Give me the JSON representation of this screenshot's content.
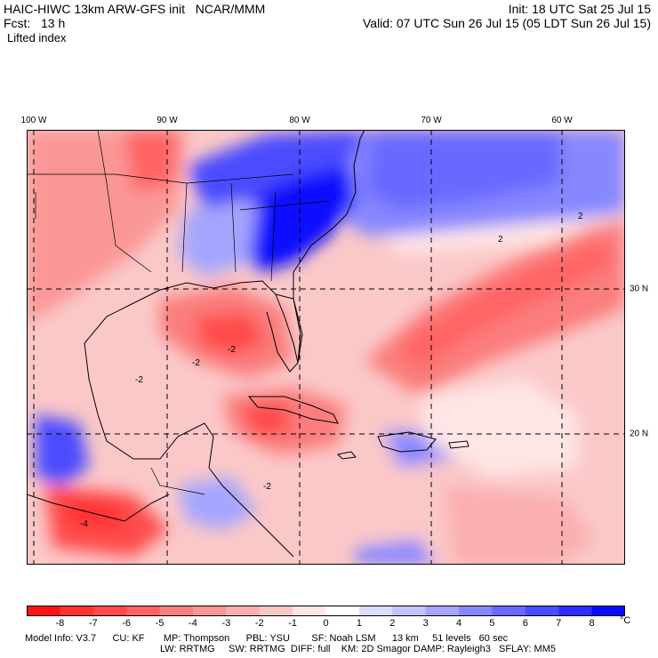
{
  "header": {
    "model_title": "HAIC-HIWC 13km ARW-GFS init   NCAR/MMM",
    "forecast_label": "Fcst:   13 h",
    "field_name": "Lifted index",
    "init_time": "Init: 18 UTC Sat 25 Jul 15",
    "valid_time": "Valid: 07 UTC Sun 26 Jul 15 (05 LDT Sun 26 Jul 15)"
  },
  "map": {
    "region": "Gulf of Mexico, Caribbean and Western Atlantic",
    "longitude_labels": [
      "100 W",
      "90 W",
      "80 W",
      "70 W",
      "60 W"
    ],
    "latitude_labels": [
      "30 N",
      "20 N"
    ],
    "contour_labels": [
      "2",
      "2",
      "-2",
      "-2",
      "-2",
      "-2",
      "-4"
    ]
  },
  "colorbar": {
    "tick_labels": [
      "-8",
      "-7",
      "-6",
      "-5",
      "-4",
      "-3",
      "-2",
      "-1",
      "0",
      "1",
      "2",
      "3",
      "4",
      "5",
      "6",
      "7",
      "8"
    ],
    "unit": "°C",
    "colors": [
      "#ff1414",
      "#ff3232",
      "#ff4b4b",
      "#ff6464",
      "#fb7d7d",
      "#fb9696",
      "#fbafaf",
      "#fbc8c8",
      "#ffe6e6",
      "#ffffff",
      "#dcdcff",
      "#c3c3ff",
      "#a5a5ff",
      "#8787ff",
      "#6969ff",
      "#4b4bff",
      "#2d2dff",
      "#0a0aff"
    ]
  },
  "footer": {
    "line1": "Model Info: V3.7      CU: KF       MP: Thompson      PBL: YSU        SF: Noah LSM      13 km     51 levels   60 sec",
    "line2": "LW: RRTMG     SW: RRTMG  DIFF: full    KM: 2D Smagor DAMP: Rayleigh3   SFLAY: MM5"
  }
}
